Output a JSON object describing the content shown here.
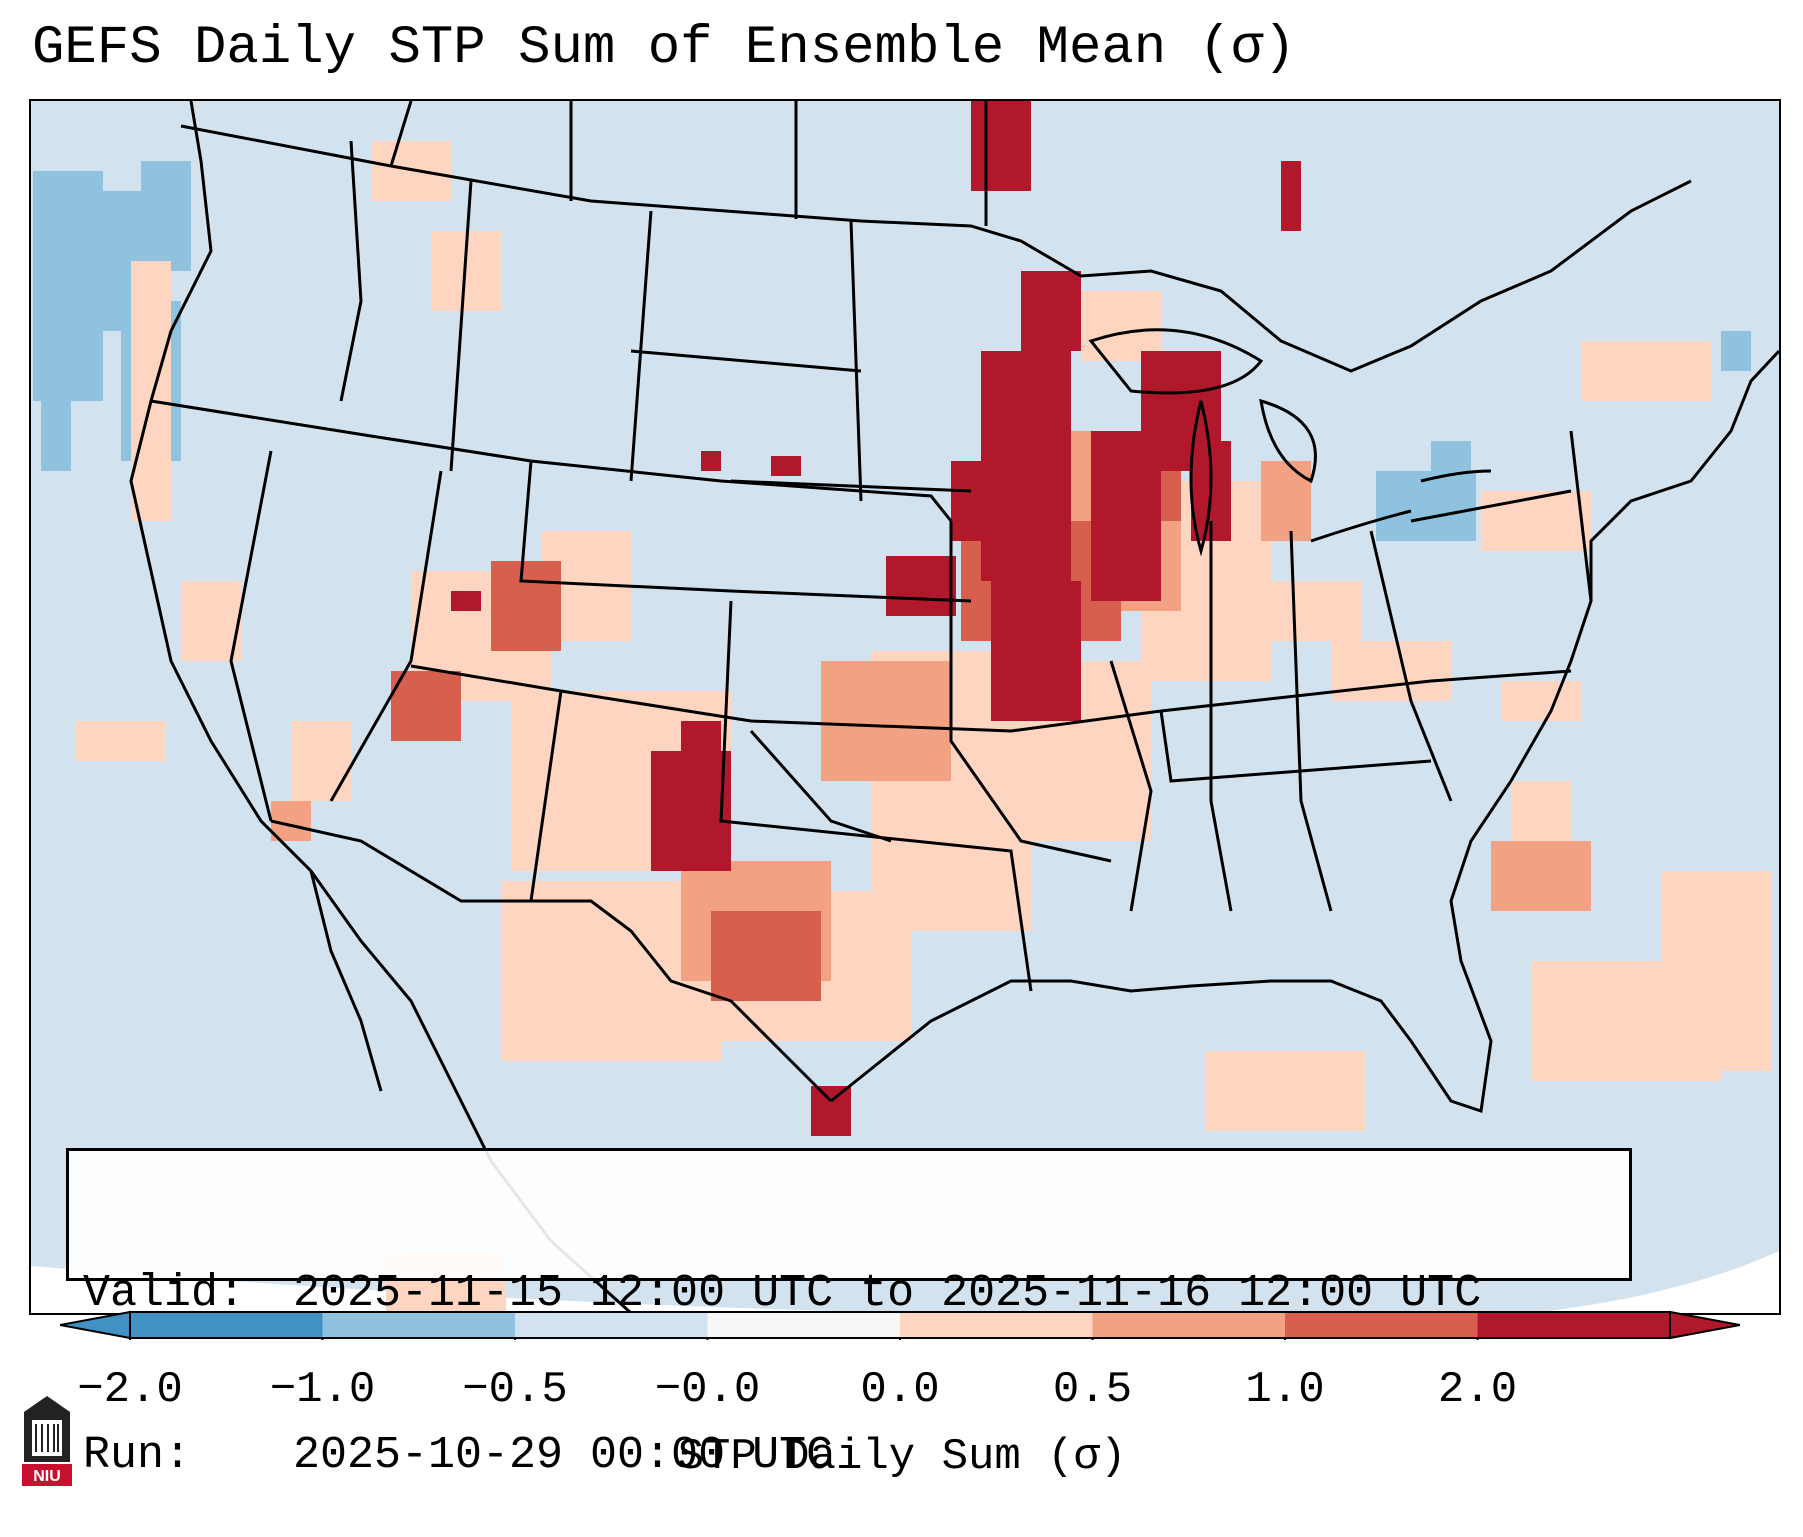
{
  "title": "GEFS Daily STP Sum of Ensemble Mean (σ)",
  "info": {
    "valid_label": "Valid:",
    "valid_value": "2025-11-15 12:00 UTC to 2025-11-16 12:00 UTC",
    "run_label": "Run:",
    "run_value": "2025-10-29 00:00 UTC"
  },
  "colorbar": {
    "label": "STP Daily Sum (σ)",
    "ticks": [
      "−2.0",
      "−1.0",
      "−0.5",
      "−0.0",
      "0.0",
      "0.5",
      "1.0",
      "2.0"
    ],
    "colors": [
      "#4291c5",
      "#8fc2df",
      "#d2e3ef",
      "#f7f7f7",
      "#fdd5c0",
      "#f2a283",
      "#d6604d",
      "#b2182b"
    ]
  },
  "logo": {
    "text": "NIU"
  },
  "colors": {
    "background_field": "#d2e3ef",
    "negative_strong": "#8fc2df",
    "positive_light": "#fdd5c0",
    "positive_mid": "#f2a283",
    "positive_strong": "#d6604d",
    "positive_max": "#b2182b"
  }
}
